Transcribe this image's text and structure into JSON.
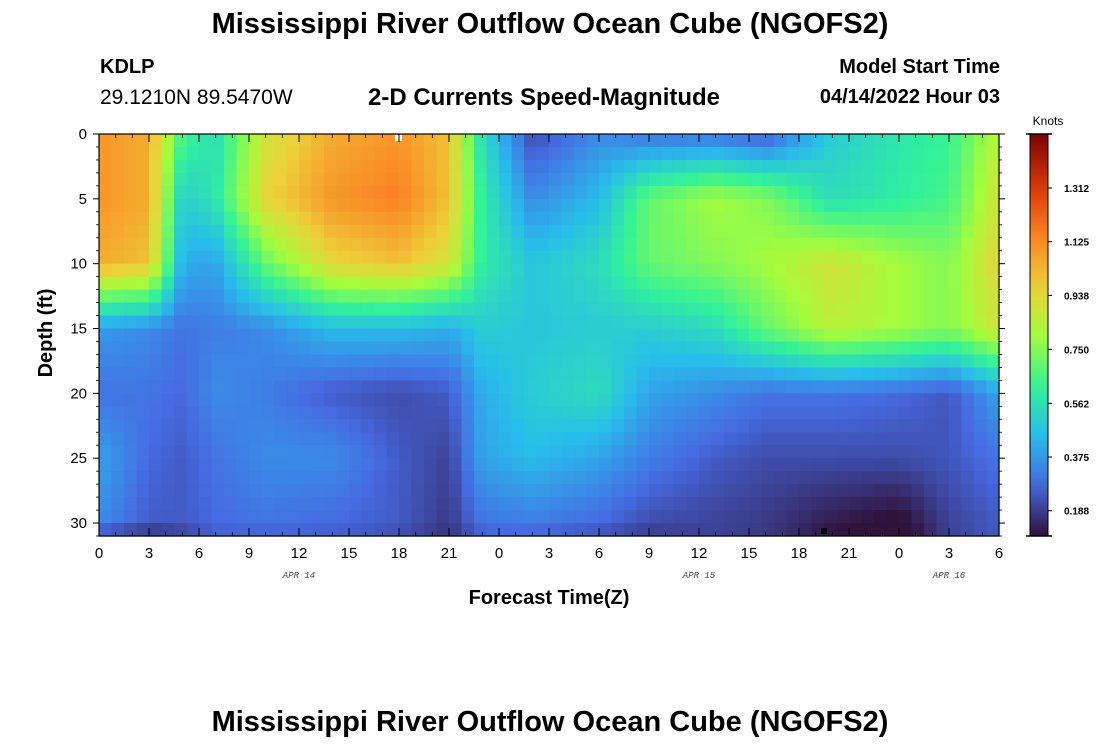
{
  "page": {
    "title": "Mississippi River Outflow Ocean Cube (NGOFS2)",
    "title_repeat": "Mississippi River Outflow Ocean Cube (NGOFS2)",
    "station_id": "KDLP",
    "coordinates": "29.1210N  89.5470W",
    "subtitle": "2-D Currents Speed-Magnitude",
    "model_start_label": "Model Start Time",
    "model_start_value": "04/14/2022 Hour 03"
  },
  "chart_data": {
    "type": "heatmap",
    "title": "2-D Currents Speed-Magnitude",
    "xlabel": "Forecast Time(Z)",
    "ylabel": "Depth (ft)",
    "x_tick_labels": [
      "0",
      "3",
      "6",
      "9",
      "12",
      "15",
      "18",
      "21",
      "0",
      "3",
      "6",
      "9",
      "12",
      "15",
      "18",
      "21",
      "0",
      "3",
      "6"
    ],
    "x_range_hours": [
      0,
      54
    ],
    "date_labels": [
      {
        "text": "APR 14",
        "hour": 12
      },
      {
        "text": "APR 15",
        "hour": 36
      },
      {
        "text": "APR 16",
        "hour": 51
      }
    ],
    "y_ticks": [
      0,
      5,
      10,
      15,
      20,
      25,
      30
    ],
    "ylim_ft": [
      0,
      31
    ],
    "y_inverted": true,
    "colorbar": {
      "label": "Knots",
      "ticks": [
        "1.312",
        "1.125",
        "0.938",
        "0.750",
        "0.562",
        "0.375",
        "0.188"
      ],
      "range": [
        0.1,
        1.5
      ]
    },
    "anchor_hours": [
      0,
      3,
      5,
      7,
      10,
      14,
      18,
      21,
      23,
      26,
      30,
      33,
      37,
      40,
      44,
      48,
      51,
      54
    ],
    "anchor_depths_ft": [
      0,
      5,
      10,
      15,
      20,
      25,
      30,
      31
    ],
    "speed_knots": [
      [
        1.1,
        1.05,
        0.65,
        0.55,
        0.9,
        1.05,
        1.1,
        1.0,
        0.55,
        0.22,
        0.35,
        0.3,
        0.3,
        0.25,
        0.5,
        0.58,
        0.62,
        0.85
      ],
      [
        1.1,
        1.05,
        0.5,
        0.58,
        0.95,
        1.1,
        1.15,
        1.0,
        0.6,
        0.35,
        0.45,
        0.7,
        0.8,
        0.75,
        0.55,
        0.6,
        0.65,
        0.9
      ],
      [
        1.05,
        1.0,
        0.42,
        0.4,
        0.7,
        0.95,
        1.0,
        0.9,
        0.6,
        0.48,
        0.55,
        0.7,
        0.75,
        0.8,
        0.9,
        0.8,
        0.75,
        0.95
      ],
      [
        0.38,
        0.35,
        0.3,
        0.32,
        0.35,
        0.45,
        0.45,
        0.42,
        0.5,
        0.48,
        0.5,
        0.5,
        0.55,
        0.7,
        0.85,
        0.8,
        0.75,
        0.9
      ],
      [
        0.3,
        0.3,
        0.28,
        0.35,
        0.32,
        0.25,
        0.22,
        0.25,
        0.42,
        0.5,
        0.55,
        0.4,
        0.35,
        0.3,
        0.3,
        0.28,
        0.24,
        0.4
      ],
      [
        0.4,
        0.28,
        0.25,
        0.3,
        0.35,
        0.35,
        0.25,
        0.2,
        0.4,
        0.45,
        0.4,
        0.32,
        0.25,
        0.22,
        0.22,
        0.22,
        0.24,
        0.3
      ],
      [
        0.35,
        0.25,
        0.25,
        0.28,
        0.3,
        0.28,
        0.25,
        0.18,
        0.3,
        0.32,
        0.28,
        0.22,
        0.2,
        0.18,
        0.12,
        0.08,
        0.2,
        0.25
      ],
      [
        0.2,
        0.14,
        0.18,
        0.25,
        0.25,
        0.25,
        0.22,
        0.16,
        0.25,
        0.25,
        0.22,
        0.18,
        0.2,
        0.18,
        0.1,
        0.05,
        0.2,
        0.25
      ]
    ]
  }
}
